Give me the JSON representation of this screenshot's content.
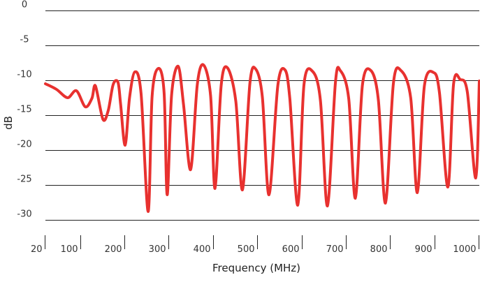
{
  "chart_data": {
    "type": "line",
    "title": "",
    "xlabel": "Frequency (MHz)",
    "ylabel": "dB",
    "xlim": [
      20,
      1000
    ],
    "ylim": [
      -30,
      0
    ],
    "grid": "horizontal",
    "legend": "none",
    "x_tick_labels": [
      "20",
      "100",
      "200",
      "300",
      "400",
      "500",
      "600",
      "700",
      "800",
      "900",
      "1000"
    ],
    "x_tick_values": [
      20,
      100,
      200,
      300,
      400,
      500,
      600,
      700,
      800,
      900,
      1000
    ],
    "y_ticks": [
      0,
      -5,
      -10,
      -15,
      -20,
      -25,
      -30
    ],
    "y_tick_labels": [
      "0",
      "-5",
      "-10",
      "-15",
      "-20",
      "-25",
      "-30"
    ],
    "series": [
      {
        "color": "#e8312f",
        "x": [
          20,
          45,
          70,
          90,
          110,
          125,
          133,
          150,
          162,
          173,
          184,
          190,
          200,
          210,
          222,
          236,
          252,
          261,
          275,
          288,
          295,
          305,
          320,
          332,
          348,
          363,
          377,
          393,
          403,
          417,
          431,
          450,
          465,
          482,
          495,
          510,
          525,
          545,
          561,
          572,
          590,
          604,
          623,
          641,
          657,
          675,
          686,
          705,
          720,
          736,
          755,
          772,
          788,
          806,
          823,
          845,
          860,
          876,
          897,
          910,
          929,
          942,
          957,
          973,
          992,
          1000
        ],
        "y": [
          -10.5,
          -11.3,
          -12.5,
          -11.5,
          -13.8,
          -12.6,
          -10.8,
          -15.6,
          -14.3,
          -10.6,
          -10.3,
          -13.5,
          -19.3,
          -12.5,
          -8.8,
          -11.9,
          -28.8,
          -12.3,
          -8.3,
          -11.7,
          -26.4,
          -12.1,
          -8.0,
          -13.5,
          -22.8,
          -10.6,
          -7.8,
          -12.2,
          -25.5,
          -10.7,
          -8.2,
          -13.0,
          -25.7,
          -10.3,
          -8.4,
          -12.4,
          -26.4,
          -10.7,
          -8.5,
          -12.6,
          -27.9,
          -10.6,
          -8.7,
          -12.8,
          -28.0,
          -10.3,
          -8.6,
          -12.6,
          -26.9,
          -10.7,
          -8.6,
          -12.8,
          -27.6,
          -10.4,
          -8.6,
          -12.5,
          -26.1,
          -10.8,
          -8.9,
          -11.8,
          -25.3,
          -10.5,
          -9.9,
          -11.7,
          -24.0,
          -10.1
        ]
      }
    ]
  }
}
